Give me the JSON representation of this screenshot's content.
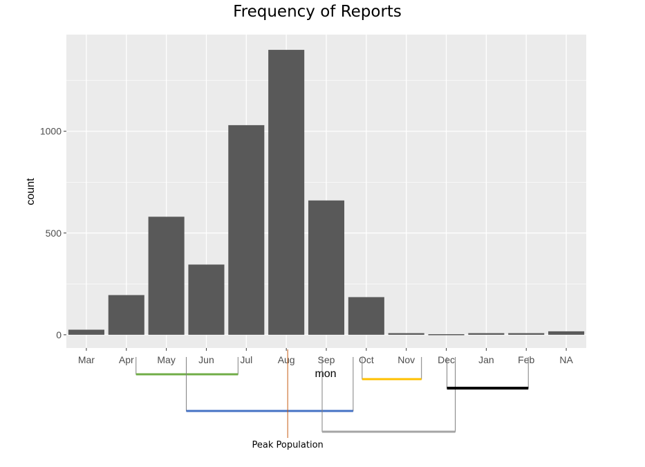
{
  "chart_data": {
    "type": "bar",
    "title": "Frequency of Reports",
    "xlabel": "mon",
    "ylabel": "count",
    "categories": [
      "Mar",
      "Apr",
      "May",
      "Jun",
      "Jul",
      "Aug",
      "Sep",
      "Oct",
      "Nov",
      "Dec",
      "Jan",
      "Feb",
      "NA"
    ],
    "values": [
      25,
      195,
      580,
      345,
      1030,
      1400,
      660,
      185,
      8,
      3,
      8,
      8,
      17
    ],
    "yticks": [
      0,
      500,
      1000
    ],
    "ytick_labels": [
      "0",
      "500",
      "1000"
    ],
    "ylim": [
      -65,
      1475
    ],
    "grid": true,
    "bar_color": "#595959",
    "panel_color": "#ebebeb",
    "annotations": [
      {
        "type": "bracket",
        "from": "Apr",
        "to": "Jul",
        "color": "#70ad47"
      },
      {
        "type": "bracket",
        "from": "Jun",
        "to": "Oct",
        "color": "#4472c4"
      },
      {
        "type": "line",
        "at": "Aug",
        "color": "#c55a11",
        "label": "Peak Population"
      },
      {
        "type": "bracket",
        "from": "Sep",
        "to": "Dec",
        "color": "#a5a5a5"
      },
      {
        "type": "bracket",
        "from": "Oct",
        "to": "Nov",
        "color": "#ffc000"
      },
      {
        "type": "bracket",
        "from": "Dec",
        "to": "Feb",
        "color": "#000000"
      }
    ]
  }
}
